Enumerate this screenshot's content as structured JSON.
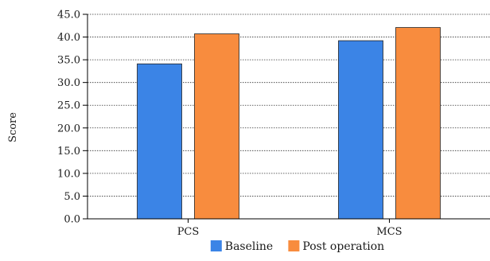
{
  "chart_data": {
    "type": "bar",
    "categories": [
      "PCS",
      "MCS"
    ],
    "series": [
      {
        "name": "Baseline",
        "values": [
          34.1,
          39.2
        ],
        "color": "#3b84e6"
      },
      {
        "name": "Post operation",
        "values": [
          40.7,
          42.1
        ],
        "color": "#f88c3e"
      }
    ],
    "ylabel": "Score",
    "xlabel": "",
    "ylim": [
      0,
      45
    ],
    "yticks": [
      "0.0",
      "5.0",
      "10.0",
      "15.0",
      "20.0",
      "25.0",
      "30.0",
      "35.0",
      "40.0",
      "45.0"
    ],
    "grid": true,
    "legend_position": "bottom-center"
  }
}
